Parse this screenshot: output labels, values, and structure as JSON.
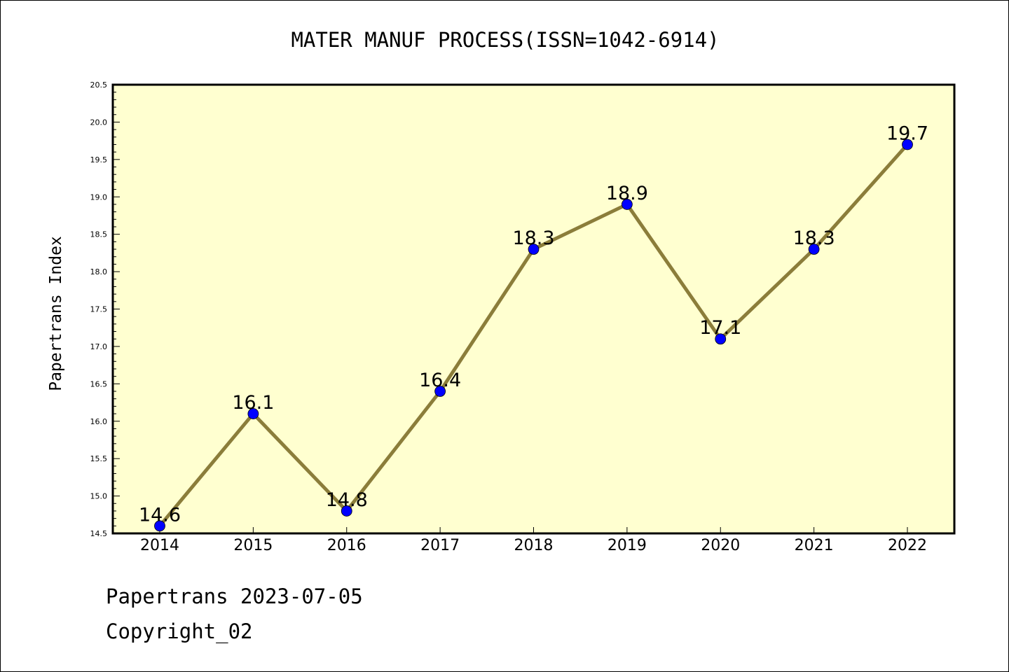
{
  "chart_data": {
    "type": "line",
    "title": "MATER MANUF PROCESS(ISSN=1042-6914)",
    "xlabel": "",
    "ylabel": "Papertrans Index",
    "categories": [
      "2014",
      "2015",
      "2016",
      "2017",
      "2018",
      "2019",
      "2020",
      "2021",
      "2022"
    ],
    "series": [
      {
        "values": [
          14.6,
          16.1,
          14.8,
          16.4,
          18.3,
          18.9,
          17.1,
          18.3,
          19.7
        ],
        "data_labels": [
          "14.6",
          "16.1",
          "14.8",
          "16.4",
          "18.3",
          "18.9",
          "17.1",
          "18.3",
          "19.7"
        ]
      }
    ],
    "ylim": [
      14.5,
      20.5
    ],
    "yticks": [
      "14.5",
      "15.0",
      "15.5",
      "16.0",
      "16.5",
      "17.0",
      "17.5",
      "18.0",
      "18.5",
      "19.0",
      "19.5",
      "20.0",
      "20.5"
    ],
    "grid": false,
    "legend": "none",
    "colors": {
      "plot_background": "#ffffd0",
      "line": "#8b7d3a",
      "marker": "#0000ff"
    }
  },
  "footer": {
    "line1": "Papertrans 2023-07-05",
    "line2": "Copyright_02"
  }
}
